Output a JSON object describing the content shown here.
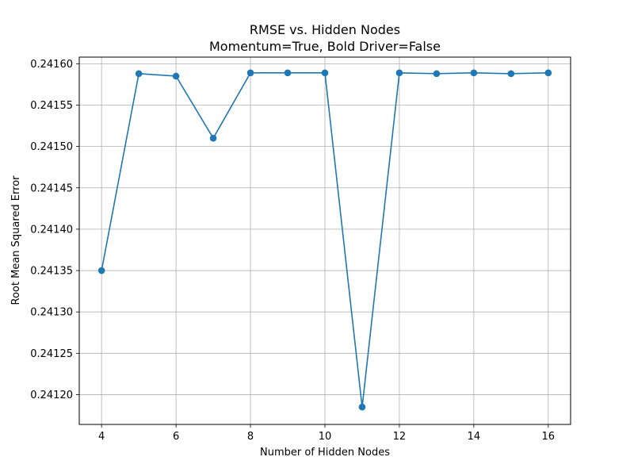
{
  "chart_data": {
    "type": "line",
    "title_line1": "RMSE vs. Hidden Nodes",
    "title_line2": "Momentum=True, Bold Driver=False",
    "xlabel": "Number of Hidden Nodes",
    "ylabel": "Root Mean Squared Error",
    "x": [
      4,
      5,
      6,
      7,
      8,
      9,
      10,
      11,
      12,
      13,
      14,
      15,
      16
    ],
    "values": [
      0.24135,
      0.241588,
      0.241585,
      0.24151,
      0.241589,
      0.241589,
      0.241589,
      0.241185,
      0.241589,
      0.241588,
      0.241589,
      0.241588,
      0.241589
    ],
    "xlim": [
      3.4,
      16.6
    ],
    "ylim": [
      0.241164,
      0.241608
    ],
    "xticks": [
      4,
      6,
      8,
      10,
      12,
      14,
      16
    ],
    "xtick_labels": [
      "4",
      "6",
      "8",
      "10",
      "12",
      "14",
      "16"
    ],
    "yticks": [
      0.2412,
      0.24125,
      0.2413,
      0.24135,
      0.2414,
      0.24145,
      0.2415,
      0.24155,
      0.2416
    ],
    "ytick_labels": [
      "0.24120",
      "0.24125",
      "0.24130",
      "0.24135",
      "0.24140",
      "0.24145",
      "0.24150",
      "0.24155",
      "0.24160"
    ],
    "grid": true,
    "line_color": "#1f77b4",
    "marker": "circle"
  }
}
